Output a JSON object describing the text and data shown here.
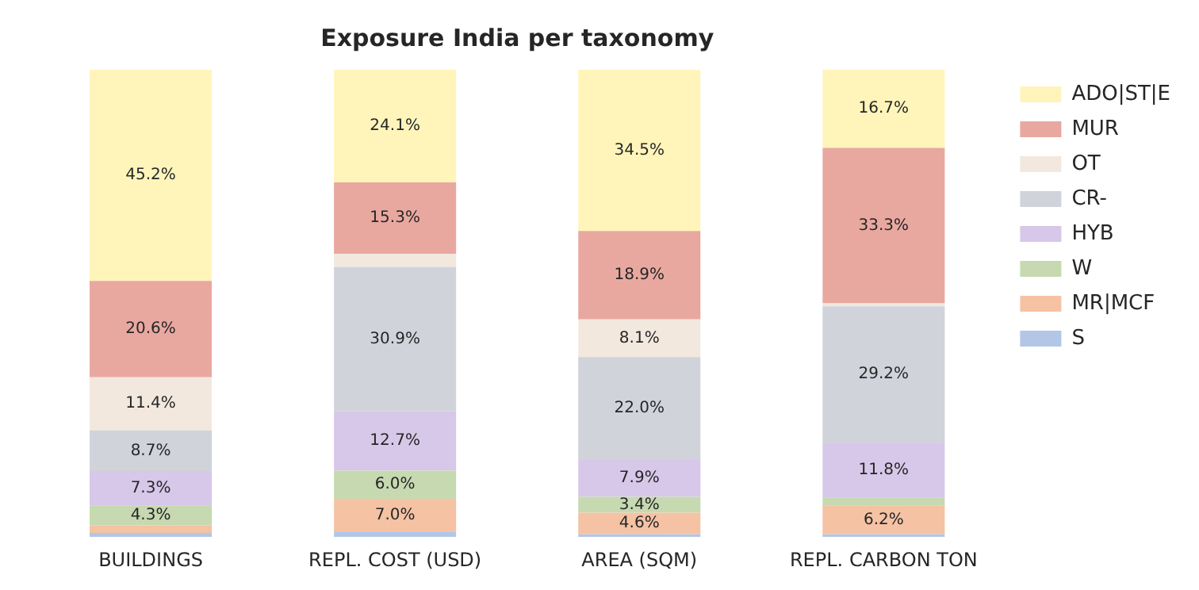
{
  "chart_data": {
    "type": "bar",
    "title": "Exposure India per taxonomy",
    "stacked": true,
    "legend": "right",
    "categories": [
      "BUILDINGS",
      "REPL. COST (USD)",
      "AREA (SQM)",
      "REPL. CARBON TON"
    ],
    "series": [
      {
        "name": "S",
        "color": "#b3c6e6",
        "values": [
          0.9,
          1.2,
          0.6,
          0.6
        ],
        "value_labels": [
          null,
          null,
          null,
          null
        ]
      },
      {
        "name": "MR|MCF",
        "color": "#f5c2a4",
        "values": [
          1.6,
          7.0,
          4.6,
          6.2
        ],
        "value_labels": [
          null,
          "7.0%",
          "4.6%",
          "6.2%"
        ]
      },
      {
        "name": "W",
        "color": "#c6d9b1",
        "values": [
          4.3,
          6.0,
          3.4,
          1.6
        ],
        "value_labels": [
          "4.3%",
          "6.0%",
          "3.4%",
          null
        ]
      },
      {
        "name": "HYB",
        "color": "#d7c7e8",
        "values": [
          7.3,
          12.7,
          7.9,
          11.8
        ],
        "value_labels": [
          "7.3%",
          "12.7%",
          "7.9%",
          "11.8%"
        ]
      },
      {
        "name": "CR-",
        "color": "#d0d3da",
        "values": [
          8.7,
          30.9,
          22.0,
          29.2
        ],
        "value_labels": [
          "8.7%",
          "30.9%",
          "22.0%",
          "29.2%"
        ]
      },
      {
        "name": "OT",
        "color": "#f2e8de",
        "values": [
          11.4,
          2.8,
          8.1,
          0.6
        ],
        "value_labels": [
          "11.4%",
          null,
          "8.1%",
          null
        ]
      },
      {
        "name": "MUR",
        "color": "#e8a8a0",
        "values": [
          20.6,
          15.3,
          18.9,
          33.3
        ],
        "value_labels": [
          "20.6%",
          "15.3%",
          "18.9%",
          "33.3%"
        ]
      },
      {
        "name": "ADO|ST|E",
        "color": "#fff5bb",
        "values": [
          45.2,
          24.1,
          34.5,
          16.7
        ],
        "value_labels": [
          "45.2%",
          "24.1%",
          "34.5%",
          "16.7%"
        ]
      }
    ]
  }
}
